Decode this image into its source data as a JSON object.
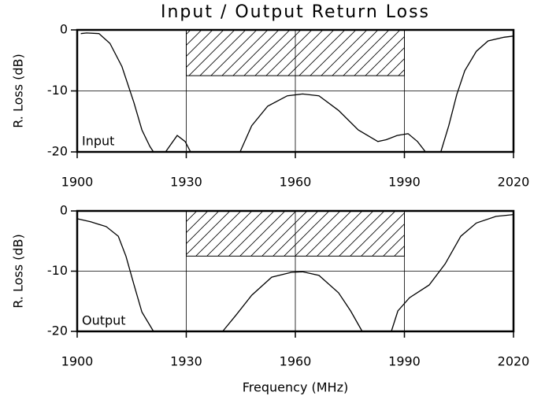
{
  "title": "Input / Output Return Loss",
  "chart_data": [
    {
      "type": "line",
      "ylabel": "R. Loss (dB)",
      "x": [
        1901,
        1902.6,
        1906,
        1909,
        1912.3,
        1915.6,
        1917.8,
        1920,
        1921,
        null,
        1924.3,
        1927.5,
        1929.7,
        1931.2,
        null,
        1944.8,
        1948,
        1952.4,
        1957.8,
        1962,
        1966.5,
        1971.9,
        1977.3,
        1982.7,
        1985,
        1988,
        1991,
        1993.6,
        1995.8,
        null,
        2000,
        2002.2,
        2004.4,
        2006.6,
        2009.8,
        2013,
        2017.4,
        2020
      ],
      "series": [
        {
          "name": "Input",
          "color": "#000000",
          "values": [
            -0.6,
            -0.5,
            -0.6,
            -2.2,
            -6,
            -11.9,
            -16.4,
            -19.1,
            -20,
            null,
            -20,
            -17.3,
            -18.3,
            -20,
            null,
            -20,
            -15.7,
            -12.5,
            -10.8,
            -10.5,
            -10.8,
            -13.2,
            -16.4,
            -18.3,
            -18,
            -17.3,
            -17,
            -18.3,
            -20,
            null,
            -20,
            -15.7,
            -10.6,
            -6.7,
            -3.5,
            -1.8,
            -1.2,
            -1
          ]
        }
      ],
      "xlim": [
        1900,
        2020
      ],
      "ylim": [
        -20,
        0
      ],
      "xticks": [
        1900,
        1930,
        1960,
        1990,
        2020
      ],
      "yticks": [
        0,
        -10,
        -20
      ],
      "grid": true,
      "shaded_region": {
        "x": [
          1930,
          1990
        ],
        "y": [
          -7.5,
          0
        ]
      }
    },
    {
      "type": "line",
      "ylabel": "R. Loss (dB)",
      "xlabel": "Frequency (MHz)",
      "x": [
        1900,
        1903.7,
        1908,
        1911.3,
        1913.4,
        1915.6,
        1917.8,
        1921,
        null,
        1940,
        1943.7,
        1948,
        1953.5,
        1958.9,
        1962,
        1966.5,
        1971.9,
        1975.2,
        1978.4,
        null,
        1986.4,
        1988.2,
        1991.4,
        1996.8,
        2001.2,
        2005.5,
        2009.8,
        2015.2,
        2020
      ],
      "series": [
        {
          "name": "Output",
          "color": "#000000",
          "values": [
            -1.3,
            -1.8,
            -2.6,
            -4.2,
            -7.5,
            -12.2,
            -16.8,
            -20,
            null,
            -20,
            -17.3,
            -14,
            -11,
            -10.2,
            -10.1,
            -10.7,
            -13.6,
            -16.6,
            -20,
            null,
            -20,
            -16.6,
            -14.4,
            -12.3,
            -8.8,
            -4.2,
            -2,
            -0.9,
            -0.6
          ]
        }
      ],
      "xlim": [
        1900,
        2020
      ],
      "ylim": [
        -20,
        0
      ],
      "xticks": [
        1900,
        1930,
        1960,
        1990,
        2020
      ],
      "yticks": [
        0,
        -10,
        -20
      ],
      "grid": true,
      "shaded_region": {
        "x": [
          1930,
          1990
        ],
        "y": [
          -7.5,
          0
        ]
      }
    }
  ]
}
